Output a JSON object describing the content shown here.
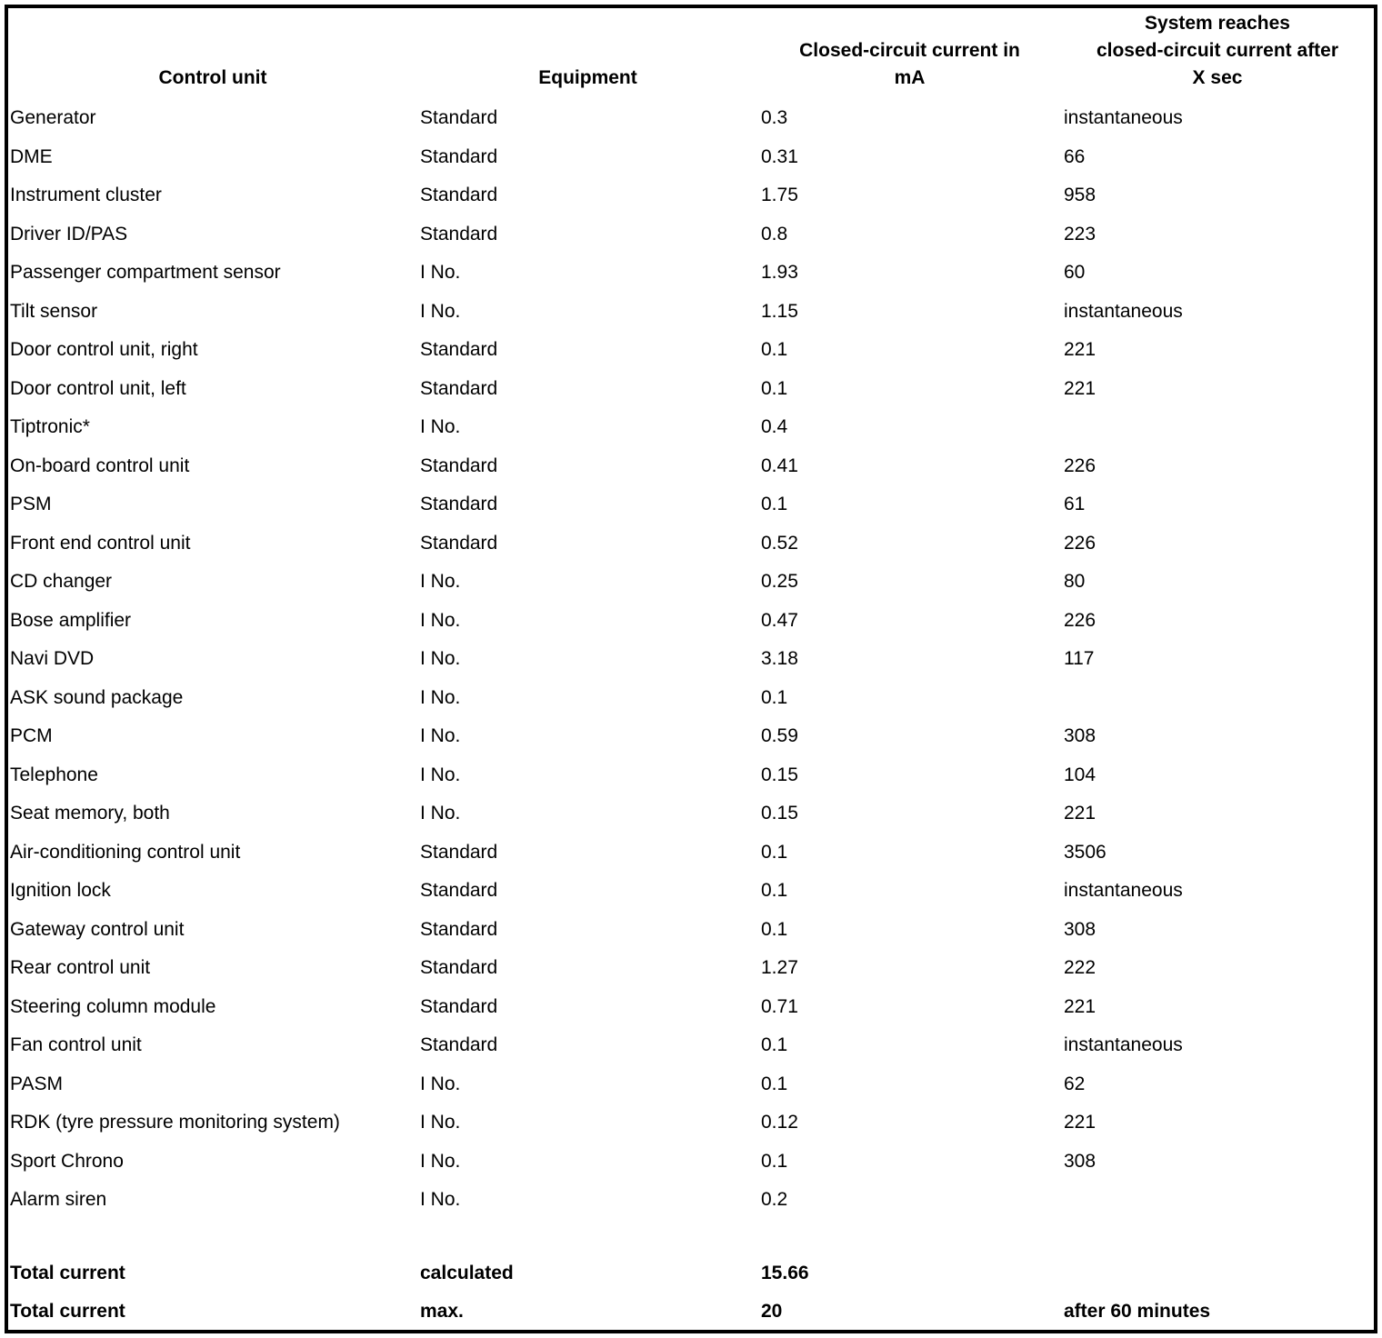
{
  "table": {
    "columns": [
      {
        "lines": [
          "Control unit"
        ]
      },
      {
        "lines": [
          "Equipment"
        ]
      },
      {
        "lines": [
          "Closed-circuit current in",
          "mA"
        ]
      },
      {
        "lines": [
          "System reaches",
          "closed-circuit current after",
          "X sec"
        ]
      }
    ],
    "rows": [
      {
        "control_unit": "Generator",
        "equipment": "Standard",
        "current_ma": "0.3",
        "reaches_after": "instantaneous"
      },
      {
        "control_unit": "DME",
        "equipment": "Standard",
        "current_ma": "0.31",
        "reaches_after": "66"
      },
      {
        "control_unit": "Instrument cluster",
        "equipment": "Standard",
        "current_ma": "1.75",
        "reaches_after": "958"
      },
      {
        "control_unit": "Driver ID/PAS",
        "equipment": "Standard",
        "current_ma": "0.8",
        "reaches_after": "223"
      },
      {
        "control_unit": "Passenger compartment sensor",
        "equipment": "I No.",
        "current_ma": "1.93",
        "reaches_after": "60"
      },
      {
        "control_unit": "Tilt sensor",
        "equipment": "I No.",
        "current_ma": "1.15",
        "reaches_after": "instantaneous"
      },
      {
        "control_unit": "Door control unit, right",
        "equipment": "Standard",
        "current_ma": "0.1",
        "reaches_after": "221"
      },
      {
        "control_unit": "Door control unit, left",
        "equipment": "Standard",
        "current_ma": "0.1",
        "reaches_after": "221"
      },
      {
        "control_unit": "Tiptronic*",
        "equipment": "I No.",
        "current_ma": "0.4",
        "reaches_after": ""
      },
      {
        "control_unit": "On-board control unit",
        "equipment": "Standard",
        "current_ma": "0.41",
        "reaches_after": "226"
      },
      {
        "control_unit": "PSM",
        "equipment": "Standard",
        "current_ma": "0.1",
        "reaches_after": "61"
      },
      {
        "control_unit": "Front end control unit",
        "equipment": "Standard",
        "current_ma": "0.52",
        "reaches_after": "226"
      },
      {
        "control_unit": "CD changer",
        "equipment": "I No.",
        "current_ma": "0.25",
        "reaches_after": "80"
      },
      {
        "control_unit": "Bose amplifier",
        "equipment": "I No.",
        "current_ma": "0.47",
        "reaches_after": "226"
      },
      {
        "control_unit": "Navi DVD",
        "equipment": "I No.",
        "current_ma": "3.18",
        "reaches_after": "117"
      },
      {
        "control_unit": "ASK sound package",
        "equipment": "I No.",
        "current_ma": "0.1",
        "reaches_after": ""
      },
      {
        "control_unit": "PCM",
        "equipment": "I No.",
        "current_ma": "0.59",
        "reaches_after": "308"
      },
      {
        "control_unit": "Telephone",
        "equipment": "I No.",
        "current_ma": "0.15",
        "reaches_after": "104"
      },
      {
        "control_unit": "Seat memory, both",
        "equipment": "I No.",
        "current_ma": "0.15",
        "reaches_after": "221"
      },
      {
        "control_unit": "Air-conditioning control unit",
        "equipment": "Standard",
        "current_ma": "0.1",
        "reaches_after": "3506"
      },
      {
        "control_unit": "Ignition lock",
        "equipment": "Standard",
        "current_ma": "0.1",
        "reaches_after": "instantaneous"
      },
      {
        "control_unit": "Gateway control unit",
        "equipment": "Standard",
        "current_ma": "0.1",
        "reaches_after": "308"
      },
      {
        "control_unit": "Rear control unit",
        "equipment": "Standard",
        "current_ma": "1.27",
        "reaches_after": "222"
      },
      {
        "control_unit": "Steering column module",
        "equipment": "Standard",
        "current_ma": "0.71",
        "reaches_after": "221"
      },
      {
        "control_unit": "Fan control unit",
        "equipment": "Standard",
        "current_ma": "0.1",
        "reaches_after": "instantaneous"
      },
      {
        "control_unit": "PASM",
        "equipment": "I No.",
        "current_ma": "0.1",
        "reaches_after": "62"
      },
      {
        "control_unit": "RDK (tyre pressure monitoring system)",
        "equipment": "I No.",
        "current_ma": "0.12",
        "reaches_after": "221"
      },
      {
        "control_unit": "Sport Chrono",
        "equipment": "I No.",
        "current_ma": "0.1",
        "reaches_after": "308"
      },
      {
        "control_unit": "Alarm siren",
        "equipment": "I No.",
        "current_ma": "0.2",
        "reaches_after": ""
      }
    ],
    "totals": [
      {
        "control_unit": "Total current",
        "equipment": "calculated",
        "current_ma": "15.66",
        "reaches_after": ""
      },
      {
        "control_unit": "Total current",
        "equipment": "max.",
        "current_ma": "20",
        "reaches_after": "after 60 minutes"
      }
    ]
  }
}
